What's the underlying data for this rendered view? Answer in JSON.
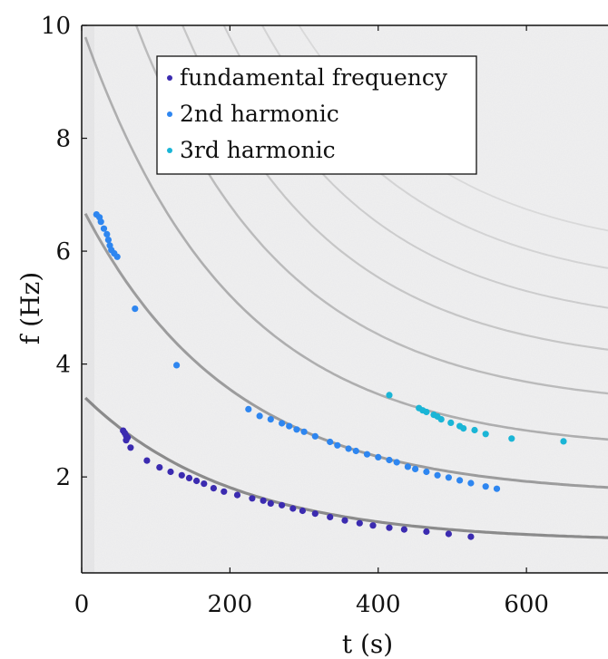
{
  "chart_data": {
    "type": "scatter",
    "xlabel": "t (s)",
    "ylabel": "f (Hz)",
    "xlim": [
      0,
      710
    ],
    "ylim": [
      0.3,
      10
    ],
    "x_ticks": [
      0,
      200,
      400,
      600
    ],
    "y_ticks": [
      2,
      4,
      6,
      8,
      10
    ],
    "background": "grayscale spectrogram",
    "legend_position": "top-center",
    "grid": false,
    "series": [
      {
        "name": "fundamental frequency",
        "color": "#3b2bb0",
        "points": [
          [
            56,
            2.82
          ],
          [
            58,
            2.78
          ],
          [
            60,
            2.73
          ],
          [
            62,
            2.7
          ],
          [
            60,
            2.65
          ],
          [
            66,
            2.52
          ],
          [
            88,
            2.29
          ],
          [
            105,
            2.17
          ],
          [
            120,
            2.09
          ],
          [
            135,
            2.03
          ],
          [
            145,
            1.98
          ],
          [
            155,
            1.93
          ],
          [
            165,
            1.88
          ],
          [
            178,
            1.8
          ],
          [
            192,
            1.74
          ],
          [
            210,
            1.68
          ],
          [
            230,
            1.62
          ],
          [
            245,
            1.58
          ],
          [
            255,
            1.53
          ],
          [
            270,
            1.5
          ],
          [
            285,
            1.44
          ],
          [
            298,
            1.4
          ],
          [
            315,
            1.35
          ],
          [
            335,
            1.29
          ],
          [
            355,
            1.23
          ],
          [
            375,
            1.18
          ],
          [
            393,
            1.14
          ],
          [
            415,
            1.1
          ],
          [
            435,
            1.07
          ],
          [
            465,
            1.03
          ],
          [
            495,
            0.99
          ],
          [
            525,
            0.94
          ]
        ]
      },
      {
        "name": "2nd harmonic",
        "color": "#2e86f0",
        "points": [
          [
            20,
            6.65
          ],
          [
            24,
            6.6
          ],
          [
            26,
            6.52
          ],
          [
            30,
            6.4
          ],
          [
            34,
            6.3
          ],
          [
            36,
            6.2
          ],
          [
            38,
            6.1
          ],
          [
            40,
            6.02
          ],
          [
            44,
            5.96
          ],
          [
            48,
            5.9
          ],
          [
            72,
            4.98
          ],
          [
            128,
            3.98
          ],
          [
            225,
            3.2
          ],
          [
            240,
            3.08
          ],
          [
            255,
            3.02
          ],
          [
            270,
            2.95
          ],
          [
            280,
            2.9
          ],
          [
            290,
            2.84
          ],
          [
            300,
            2.8
          ],
          [
            315,
            2.72
          ],
          [
            335,
            2.62
          ],
          [
            345,
            2.56
          ],
          [
            360,
            2.5
          ],
          [
            370,
            2.46
          ],
          [
            385,
            2.4
          ],
          [
            400,
            2.35
          ],
          [
            415,
            2.3
          ],
          [
            425,
            2.26
          ],
          [
            440,
            2.18
          ],
          [
            450,
            2.14
          ],
          [
            465,
            2.09
          ],
          [
            480,
            2.03
          ],
          [
            495,
            1.99
          ],
          [
            510,
            1.94
          ],
          [
            525,
            1.89
          ],
          [
            545,
            1.83
          ],
          [
            560,
            1.79
          ]
        ]
      },
      {
        "name": "3rd harmonic",
        "color": "#1ab5d6",
        "points": [
          [
            415,
            3.45
          ],
          [
            455,
            3.22
          ],
          [
            460,
            3.18
          ],
          [
            465,
            3.15
          ],
          [
            475,
            3.1
          ],
          [
            480,
            3.07
          ],
          [
            485,
            3.02
          ],
          [
            498,
            2.96
          ],
          [
            510,
            2.9
          ],
          [
            515,
            2.86
          ],
          [
            530,
            2.83
          ],
          [
            545,
            2.76
          ],
          [
            580,
            2.68
          ],
          [
            650,
            2.63
          ]
        ]
      }
    ]
  }
}
